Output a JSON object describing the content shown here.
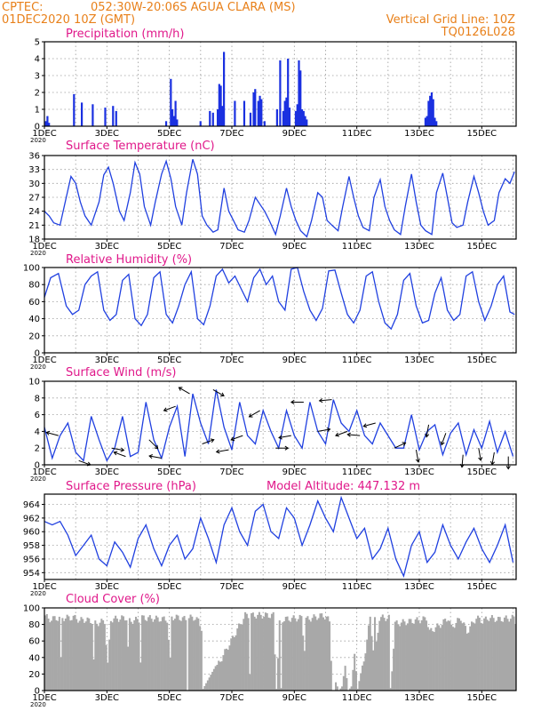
{
  "header": {
    "center": "CPTEC:",
    "location": "052:30W-20:06S  AGUA CLARA (MS)",
    "date": "01DEC2020 10Z (GMT)",
    "grid_line": "Vertical Grid Line: 10Z",
    "code": "TQ0126L028"
  },
  "x_ticks": [
    "1DEC",
    "3DEC",
    "5DEC",
    "7DEC",
    "9DEC",
    "11DEC",
    "13DEC",
    "15DEC"
  ],
  "year_label": "2020",
  "altitude_label": "Model Altitude: 447.132 m",
  "colors": {
    "series": "#2040e0",
    "bars": "#1a30e0",
    "cloud": "#a8a8a8",
    "title": "#e0188a",
    "header": "#e8801a"
  },
  "chart_data": [
    {
      "id": "precip",
      "type": "bar",
      "title": "Precipitation (mm/h)",
      "x_unit": "day",
      "xlim": [
        0,
        15.1
      ],
      "ylim": [
        0,
        5
      ],
      "yticks": [
        0,
        1,
        2,
        3,
        4,
        5
      ],
      "x": [
        0.05,
        0.1,
        0.15,
        0.95,
        1.2,
        1.55,
        1.95,
        2.2,
        2.3,
        3.9,
        4.05,
        4.1,
        4.15,
        4.2,
        4.25,
        5.0,
        5.3,
        5.4,
        5.55,
        5.6,
        5.65,
        5.7,
        5.75,
        6.1,
        6.4,
        6.6,
        6.7,
        6.75,
        6.85,
        6.9,
        6.95,
        7.05,
        7.45,
        7.55,
        7.65,
        7.7,
        7.75,
        7.8,
        7.85,
        8.05,
        8.1,
        8.15,
        8.2,
        8.25,
        8.3,
        8.35,
        8.4,
        12.2,
        12.25,
        12.3,
        12.35,
        12.4,
        12.45,
        12.5,
        12.55
      ],
      "values": [
        0.3,
        0.6,
        0.2,
        1.9,
        1.4,
        1.3,
        1.1,
        1.2,
        0.9,
        0.3,
        2.8,
        1.0,
        0.6,
        1.5,
        0.4,
        0.3,
        0.9,
        0.8,
        1.0,
        2.5,
        2.4,
        1.2,
        4.4,
        1.5,
        1.5,
        0.8,
        2.0,
        2.2,
        1.5,
        1.8,
        1.6,
        0.3,
        1.0,
        3.9,
        0.9,
        1.5,
        1.7,
        4.0,
        1.1,
        0.9,
        1.3,
        3.9,
        3.3,
        1.0,
        0.9,
        0.6,
        0.4,
        0.5,
        0.6,
        1.5,
        1.8,
        2.0,
        1.6,
        0.5,
        0.3
      ]
    },
    {
      "id": "temp",
      "type": "line",
      "title": "Surface Temperature (nC)",
      "x_unit": "day",
      "xlim": [
        0,
        15.1
      ],
      "ylim": [
        18,
        36
      ],
      "yticks": [
        18,
        21,
        24,
        27,
        30,
        33,
        36
      ],
      "x": [
        0,
        0.15,
        0.3,
        0.5,
        0.7,
        0.85,
        1.0,
        1.15,
        1.3,
        1.5,
        1.75,
        1.9,
        2.05,
        2.2,
        2.4,
        2.55,
        2.75,
        2.9,
        3.05,
        3.2,
        3.4,
        3.55,
        3.75,
        3.9,
        4.05,
        4.2,
        4.4,
        4.55,
        4.75,
        4.9,
        5.05,
        5.2,
        5.4,
        5.55,
        5.75,
        5.9,
        6.05,
        6.2,
        6.4,
        6.55,
        6.75,
        6.9,
        7.05,
        7.2,
        7.4,
        7.55,
        7.75,
        7.9,
        8.05,
        8.2,
        8.4,
        8.55,
        8.75,
        8.9,
        9.05,
        9.2,
        9.4,
        9.55,
        9.75,
        9.9,
        10.05,
        10.2,
        10.4,
        10.55,
        10.75,
        10.9,
        11.05,
        11.2,
        11.4,
        11.55,
        11.75,
        11.9,
        12.05,
        12.2,
        12.4,
        12.55,
        12.75,
        12.9,
        13.05,
        13.2,
        13.4,
        13.55,
        13.75,
        13.9,
        14.05,
        14.2,
        14.4,
        14.55,
        14.75,
        14.9,
        15.05
      ],
      "values": [
        24,
        23,
        21.5,
        21,
        27,
        31.5,
        30,
        26,
        23,
        21,
        26,
        31.8,
        33.5,
        30,
        24,
        22,
        28,
        34.5,
        32,
        25,
        21,
        26,
        32,
        34.8,
        31,
        25,
        21,
        28,
        35.2,
        32,
        23,
        21,
        19.5,
        20,
        29,
        24,
        22,
        20,
        19.5,
        22,
        27,
        25.5,
        24,
        22,
        19,
        23,
        29,
        25,
        22,
        19.8,
        18.5,
        22,
        28,
        27,
        22,
        21,
        19.8,
        25,
        31.5,
        27,
        23,
        20.5,
        19.8,
        27,
        30.8,
        25,
        22,
        20,
        19,
        25,
        32,
        26,
        21,
        19.8,
        19,
        28,
        32.2,
        27,
        21.5,
        20.5,
        21,
        26,
        31.5,
        28,
        24,
        21,
        22,
        28,
        31,
        30,
        32.5
      ]
    },
    {
      "id": "rh",
      "type": "line",
      "title": "Relative Humidity (%)",
      "x_unit": "day",
      "xlim": [
        0,
        15.1
      ],
      "ylim": [
        0,
        100
      ],
      "yticks": [
        0,
        20,
        40,
        60,
        80,
        100
      ],
      "x": [
        0,
        0.2,
        0.45,
        0.7,
        0.9,
        1.1,
        1.3,
        1.5,
        1.7,
        1.9,
        2.1,
        2.3,
        2.5,
        2.7,
        2.9,
        3.1,
        3.3,
        3.5,
        3.7,
        3.9,
        4.1,
        4.3,
        4.5,
        4.7,
        4.9,
        5.1,
        5.3,
        5.5,
        5.7,
        5.9,
        6.1,
        6.3,
        6.5,
        6.7,
        6.9,
        7.1,
        7.3,
        7.5,
        7.7,
        7.9,
        8.1,
        8.3,
        8.5,
        8.7,
        8.9,
        9.1,
        9.3,
        9.5,
        9.7,
        9.9,
        10.1,
        10.3,
        10.5,
        10.7,
        10.9,
        11.1,
        11.3,
        11.5,
        11.7,
        11.9,
        12.1,
        12.3,
        12.5,
        12.7,
        12.9,
        13.1,
        13.3,
        13.5,
        13.7,
        13.9,
        14.1,
        14.3,
        14.5,
        14.7,
        14.9,
        15.05
      ],
      "values": [
        65,
        88,
        93,
        55,
        45,
        50,
        80,
        90,
        95,
        50,
        38,
        45,
        85,
        92,
        40,
        32,
        45,
        88,
        95,
        45,
        35,
        55,
        80,
        95,
        40,
        33,
        55,
        90,
        98,
        82,
        90,
        75,
        60,
        88,
        98,
        80,
        90,
        60,
        50,
        98,
        100,
        72,
        50,
        38,
        52,
        96,
        97,
        70,
        45,
        35,
        50,
        90,
        95,
        60,
        35,
        28,
        45,
        85,
        93,
        55,
        35,
        38,
        70,
        88,
        50,
        38,
        45,
        90,
        95,
        60,
        38,
        55,
        80,
        90,
        48,
        45
      ]
    },
    {
      "id": "wind",
      "type": "line",
      "title": "Surface Wind (m/s)",
      "x_unit": "day",
      "xlim": [
        0,
        15.1
      ],
      "ylim": [
        0,
        10
      ],
      "yticks": [
        0,
        2,
        4,
        6,
        8,
        10
      ],
      "x": [
        0,
        0.25,
        0.5,
        0.75,
        1.0,
        1.25,
        1.5,
        1.75,
        2.0,
        2.25,
        2.5,
        2.75,
        3.0,
        3.25,
        3.5,
        3.75,
        4.0,
        4.25,
        4.5,
        4.75,
        5.0,
        5.25,
        5.5,
        5.75,
        6.0,
        6.25,
        6.5,
        6.75,
        7.0,
        7.25,
        7.5,
        7.75,
        8.0,
        8.25,
        8.5,
        8.75,
        9.0,
        9.25,
        9.5,
        9.75,
        10.0,
        10.25,
        10.5,
        10.75,
        11.0,
        11.25,
        11.5,
        11.75,
        12.0,
        12.25,
        12.5,
        12.75,
        13.0,
        13.25,
        13.5,
        13.75,
        14.0,
        14.25,
        14.5,
        14.75,
        15.0
      ],
      "values": [
        4.5,
        0.8,
        3.5,
        5,
        1.5,
        0.5,
        5.8,
        3,
        0.5,
        2,
        5.8,
        1,
        1.5,
        7.5,
        3,
        0.8,
        4.5,
        7,
        1,
        8.5,
        5,
        2.5,
        9,
        4.5,
        1.8,
        7.5,
        3.5,
        2.5,
        6.5,
        4,
        2,
        6.5,
        3.5,
        2,
        7.5,
        4,
        2.5,
        7.8,
        5,
        4,
        6.5,
        3.5,
        2.5,
        5,
        3.5,
        2,
        2,
        6,
        1.8,
        4,
        4.8,
        1.2,
        3.8,
        5,
        1.2,
        4.2,
        2,
        5.2,
        1.5,
        4,
        1
      ],
      "arrows": [
        [
          0.45,
          165
        ],
        [
          1.1,
          -20
        ],
        [
          2.15,
          -10
        ],
        [
          2.6,
          160
        ],
        [
          3.35,
          -45
        ],
        [
          3.75,
          170
        ],
        [
          4.2,
          200
        ],
        [
          4.65,
          150
        ],
        [
          5.05,
          20
        ],
        [
          5.4,
          -30
        ],
        [
          5.9,
          190
        ],
        [
          6.35,
          200
        ],
        [
          6.9,
          210
        ],
        [
          7.4,
          0
        ],
        [
          7.9,
          190
        ],
        [
          8.3,
          180
        ],
        [
          8.75,
          10
        ],
        [
          9.2,
          185
        ],
        [
          9.7,
          200
        ],
        [
          10.1,
          175
        ],
        [
          10.6,
          195
        ],
        [
          11.2,
          25
        ],
        [
          11.9,
          -80
        ],
        [
          12.3,
          -100
        ],
        [
          12.85,
          -110
        ],
        [
          13.4,
          -95
        ],
        [
          13.9,
          -80
        ],
        [
          14.4,
          -100
        ],
        [
          14.85,
          -90
        ]
      ]
    },
    {
      "id": "pressure",
      "type": "line",
      "title": "Surface Pressure (hPa)",
      "x_unit": "day",
      "xlim": [
        0,
        15.1
      ],
      "ylim": [
        953,
        965.5
      ],
      "yticks": [
        954,
        956,
        958,
        960,
        962,
        964
      ],
      "x": [
        0,
        0.25,
        0.5,
        0.75,
        1.0,
        1.25,
        1.5,
        1.75,
        2.0,
        2.25,
        2.5,
        2.75,
        3.0,
        3.25,
        3.5,
        3.75,
        4.0,
        4.25,
        4.5,
        4.75,
        5.0,
        5.25,
        5.5,
        5.75,
        6.0,
        6.25,
        6.5,
        6.75,
        7.0,
        7.25,
        7.5,
        7.75,
        8.0,
        8.25,
        8.5,
        8.75,
        9.0,
        9.25,
        9.5,
        9.75,
        10.0,
        10.25,
        10.5,
        10.75,
        11.0,
        11.25,
        11.5,
        11.75,
        12.0,
        12.25,
        12.5,
        12.75,
        13.0,
        13.25,
        13.5,
        13.75,
        14.0,
        14.25,
        14.5,
        14.75,
        15.0
      ],
      "values": [
        961.5,
        961,
        961.5,
        959.5,
        956.5,
        958,
        959.5,
        956,
        955,
        958.5,
        957,
        954.8,
        959,
        961,
        957.5,
        955,
        958,
        959.5,
        956,
        957.5,
        962,
        959,
        955.5,
        961,
        963.5,
        960,
        958,
        963,
        964,
        960,
        959,
        963.5,
        962,
        958,
        961,
        964.5,
        962,
        960,
        965,
        962,
        959,
        960.5,
        956,
        957.5,
        960.5,
        956,
        953.5,
        958,
        960,
        955.5,
        957,
        961,
        958,
        956,
        958.5,
        960.5,
        957.5,
        955.5,
        958,
        961,
        955.5
      ]
    },
    {
      "id": "cloud",
      "type": "area",
      "title": "Cloud Cover (%)",
      "x_unit": "day",
      "xlim": [
        0,
        15.1
      ],
      "ylim": [
        0,
        100
      ],
      "yticks": [
        0,
        20,
        40,
        60,
        80,
        100
      ],
      "x": [
        0,
        0.1,
        0.45,
        0.5,
        0.55,
        1.0,
        1.1,
        1.2,
        1.5,
        1.55,
        1.6,
        1.9,
        2.0,
        2.1,
        2.6,
        2.65,
        2.7,
        3.0,
        3.05,
        3.1,
        3.9,
        4.0,
        4.05,
        4.3,
        4.5,
        4.55,
        4.6,
        4.8,
        4.9,
        5.0,
        5.05,
        6.4,
        6.5,
        6.55,
        6.6,
        7.3,
        7.4,
        7.5,
        7.55,
        7.6,
        8.2,
        8.3,
        8.35,
        8.9,
        9.0,
        9.1,
        9.2,
        9.25,
        9.3,
        9.4,
        9.5,
        9.6,
        9.7,
        9.8,
        9.9,
        10.0,
        10.2,
        10.4,
        10.5,
        10.55,
        10.6,
        10.7,
        11.0,
        11.05,
        11.2,
        12.1,
        12.2,
        12.3,
        12.7,
        12.9,
        13.0,
        13.3,
        13.5,
        13.8,
        14.0,
        14.2,
        14.5,
        15.0,
        15.05
      ],
      "values": [
        95,
        90,
        92,
        40,
        92,
        92,
        88,
        90,
        88,
        40,
        85,
        88,
        35,
        90,
        92,
        55,
        88,
        90,
        40,
        92,
        90,
        40,
        93,
        92,
        90,
        0,
        92,
        92,
        88,
        80,
        2,
        95,
        95,
        20,
        95,
        95,
        2,
        85,
        3,
        90,
        92,
        55,
        90,
        95,
        92,
        88,
        0,
        0,
        10,
        0,
        5,
        30,
        0,
        5,
        45,
        2,
        40,
        92,
        55,
        90,
        60,
        92,
        92,
        3,
        85,
        90,
        92,
        75,
        85,
        92,
        80,
        92,
        75,
        92,
        88,
        92,
        90,
        92,
        88
      ]
    }
  ]
}
